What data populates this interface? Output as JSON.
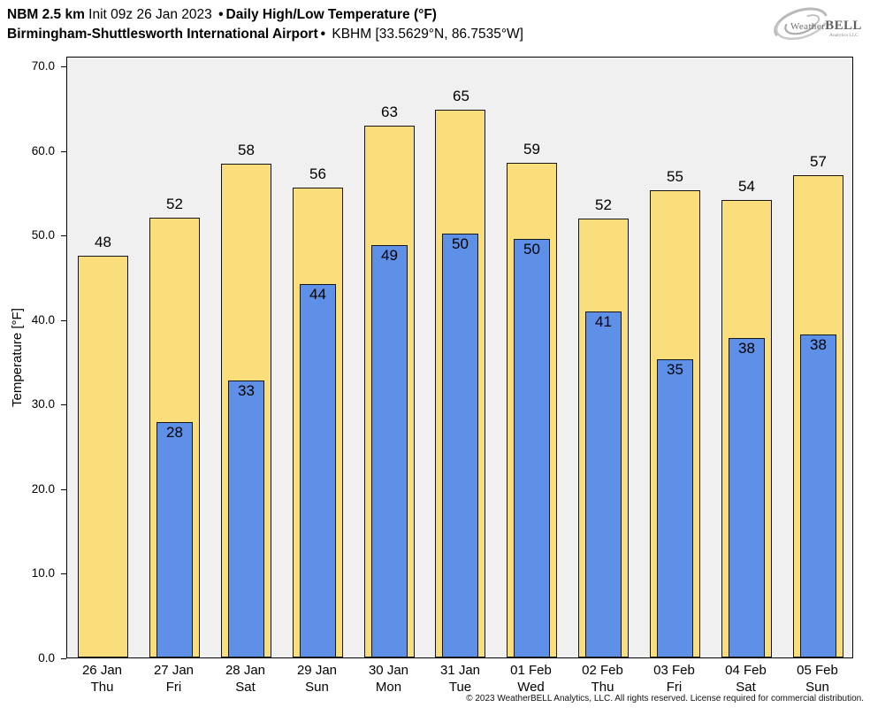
{
  "header": {
    "model": "NBM 2.5 km",
    "init": " Init 09z 26 Jan 2023 ",
    "bullet": "•",
    "product": "Daily High/Low Temperature (°F)",
    "location": "Birmingham-Shuttlesworth International Airport",
    "station": " KBHM [33.5629°N, 86.7535°W]"
  },
  "logo": {
    "weather": "Weather",
    "bell": "BELL",
    "sub": "Analytics LLC"
  },
  "footer": {
    "copyright": "© 2023 WeatherBELL Analytics, LLC. All rights reserved. License required for commercial distribution."
  },
  "chart_data": {
    "type": "bar",
    "title": "Daily High/Low Temperature (°F)",
    "ylabel": "Temperature [°F]",
    "ylim": [
      0,
      71.15
    ],
    "yticks": [
      0,
      10,
      20,
      30,
      40,
      50,
      60,
      70
    ],
    "ytick_labels": [
      "0.0",
      "10.0",
      "20.0",
      "30.0",
      "40.0",
      "50.0",
      "60.0",
      "70.0"
    ],
    "grid": false,
    "legend": "none",
    "colors": {
      "high": "#FADE7B",
      "low": "#5E90E8",
      "edge": "#161616",
      "plot_bg": "#F0F0F0"
    },
    "categories": [
      {
        "date": "26 Jan",
        "day": "Thu"
      },
      {
        "date": "27 Jan",
        "day": "Fri"
      },
      {
        "date": "28 Jan",
        "day": "Sat"
      },
      {
        "date": "29 Jan",
        "day": "Sun"
      },
      {
        "date": "30 Jan",
        "day": "Mon"
      },
      {
        "date": "31 Jan",
        "day": "Tue"
      },
      {
        "date": "01 Feb",
        "day": "Wed"
      },
      {
        "date": "02 Feb",
        "day": "Thu"
      },
      {
        "date": "03 Feb",
        "day": "Fri"
      },
      {
        "date": "04 Feb",
        "day": "Sat"
      },
      {
        "date": "05 Feb",
        "day": "Sun"
      }
    ],
    "series": [
      {
        "name": "High",
        "labels": [
          48,
          52,
          58,
          56,
          63,
          65,
          59,
          52,
          55,
          54,
          57
        ],
        "values": [
          47.5,
          52.0,
          58.4,
          55.6,
          62.9,
          64.8,
          58.5,
          51.9,
          55.2,
          54.1,
          57.0
        ]
      },
      {
        "name": "Low",
        "labels": [
          null,
          28,
          33,
          44,
          49,
          50,
          50,
          41,
          35,
          38,
          38
        ],
        "values": [
          null,
          27.8,
          32.8,
          44.2,
          48.8,
          50.1,
          49.5,
          40.9,
          35.3,
          37.8,
          38.2
        ]
      }
    ]
  }
}
